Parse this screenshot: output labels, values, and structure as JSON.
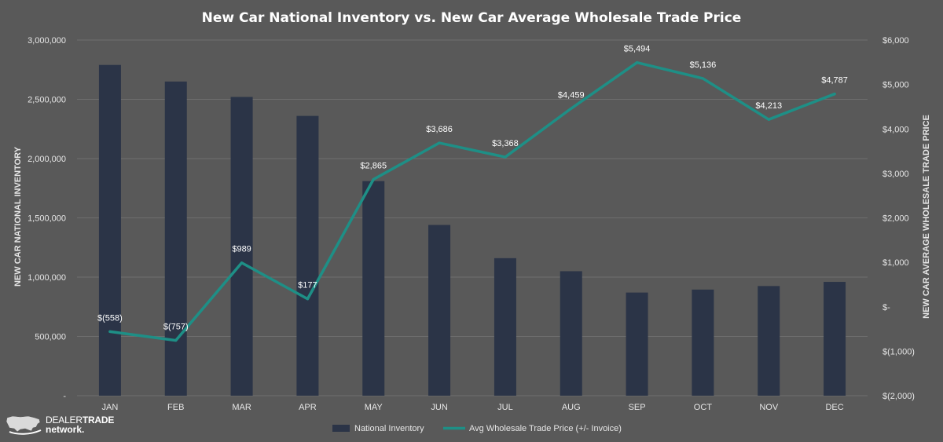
{
  "chart_data": {
    "type": "bar",
    "title": "New Car National Inventory vs. New Car Average Wholesale Trade Price",
    "categories": [
      "JAN",
      "FEB",
      "MAR",
      "APR",
      "MAY",
      "JUN",
      "JUL",
      "AUG",
      "SEP",
      "OCT",
      "NOV",
      "DEC"
    ],
    "series": [
      {
        "name": "National Inventory",
        "type": "bar",
        "axis": "left",
        "color": "#2b3447",
        "values": [
          2790000,
          2650000,
          2520000,
          2360000,
          1810000,
          1440000,
          1160000,
          1050000,
          870000,
          895000,
          925000,
          960000
        ]
      },
      {
        "name": "Avg Wholesale Trade Price (+/- Invoice)",
        "type": "line",
        "axis": "right",
        "color": "#1e8f86",
        "values": [
          -558,
          -757,
          989,
          177,
          2865,
          3686,
          3368,
          4459,
          5494,
          5136,
          4213,
          4787
        ],
        "labels": [
          "$(558)",
          "$(757)",
          "$989",
          "$177",
          "$2,865",
          "$3,686",
          "$3,368",
          "$4,459",
          "$5,494",
          "$5,136",
          "$4,213",
          "$4,787"
        ]
      }
    ],
    "y_left": {
      "label": "NEW CAR NATIONAL INVENTORY",
      "range": [
        0,
        3000000
      ],
      "ticks": [
        0,
        500000,
        1000000,
        1500000,
        2000000,
        2500000,
        3000000
      ],
      "tick_labels": [
        "-",
        "500,000",
        "1,000,000",
        "1,500,000",
        "2,000,000",
        "2,500,000",
        "3,000,000"
      ]
    },
    "y_right": {
      "label": "NEW CAR AVERAGE WHOLESALE TRADE PRICE",
      "range": [
        -2000,
        6000
      ],
      "ticks": [
        -2000,
        -1000,
        0,
        1000,
        2000,
        3000,
        4000,
        5000,
        6000
      ],
      "tick_labels": [
        "$(2,000)",
        "$(1,000)",
        "$-",
        "$1,000",
        "$2,000",
        "$3,000",
        "$4,000",
        "$5,000",
        "$6,000"
      ]
    },
    "grid": true,
    "legend": "bottom"
  },
  "logo": {
    "line1_a": "DEALER",
    "line1_b": "TRADE",
    "line2": "network."
  },
  "colors": {
    "background": "#595959",
    "gridline": "#6e6e6e",
    "bar": "#2b3447",
    "line": "#1e8f86"
  }
}
